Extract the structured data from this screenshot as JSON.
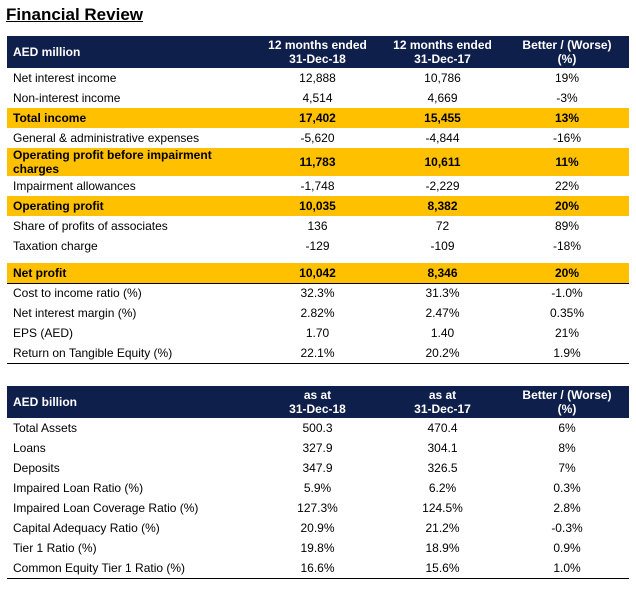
{
  "title": "Financial Review",
  "table1": {
    "headers": [
      [
        "AED million"
      ],
      [
        "12 months ended",
        "31-Dec-18"
      ],
      [
        "12 months ended",
        "31-Dec-17"
      ],
      [
        "Better / (Worse)",
        "(%)"
      ]
    ],
    "rows": [
      [
        "Net interest income",
        "12,888",
        "10,786",
        "19%"
      ],
      [
        "Non-interest income",
        "4,514",
        "4,669",
        "-3%"
      ],
      [
        "Total income",
        "17,402",
        "15,455",
        "13%"
      ],
      [
        "General & administrative expenses",
        "-5,620",
        "-4,844",
        "-16%"
      ],
      [
        "Operating profit before impairment charges",
        "11,783",
        "10,611",
        "11%"
      ],
      [
        "Impairment allowances",
        "-1,748",
        "-2,229",
        "22%"
      ],
      [
        "Operating profit",
        "10,035",
        "8,382",
        "20%"
      ],
      [
        "Share of profits of associates",
        "136",
        "72",
        "89%"
      ],
      [
        "Taxation charge",
        "-129",
        "-109",
        "-18%"
      ],
      [
        "Net profit",
        "10,042",
        "8,346",
        "20%"
      ],
      [
        "Cost to income ratio (%)",
        "32.3%",
        "31.3%",
        "-1.0%"
      ],
      [
        "Net interest margin (%)",
        "2.82%",
        "2.47%",
        "0.35%"
      ],
      [
        "EPS (AED)",
        "1.70",
        "1.40",
        "21%"
      ],
      [
        "Return on Tangible Equity (%)",
        "22.1%",
        "20.2%",
        "1.9%"
      ]
    ]
  },
  "table2": {
    "headers": [
      [
        "AED billion"
      ],
      [
        "as at",
        "31-Dec-18"
      ],
      [
        "as at",
        "31-Dec-17"
      ],
      [
        "Better / (Worse)",
        "(%)"
      ]
    ],
    "rows": [
      [
        "Total Assets",
        "500.3",
        "470.4",
        "6%"
      ],
      [
        "Loans",
        "327.9",
        "304.1",
        "8%"
      ],
      [
        "Deposits",
        "347.9",
        "326.5",
        "7%"
      ],
      [
        "Impaired Loan Ratio (%)",
        "5.9%",
        "6.2%",
        "0.3%"
      ],
      [
        "Impaired Loan Coverage Ratio (%)",
        "127.3%",
        "124.5%",
        "2.8%"
      ],
      [
        "Capital Adequacy Ratio (%)",
        "20.9%",
        "21.2%",
        "-0.3%"
      ],
      [
        "Tier 1 Ratio (%)",
        "19.8%",
        "18.9%",
        "0.9%"
      ],
      [
        "Common Equity Tier 1 Ratio (%)",
        "16.6%",
        "15.6%",
        "1.0%"
      ]
    ]
  },
  "colors": {
    "header_bg": "#0f1f4b",
    "highlight_bg": "#ffc000"
  }
}
